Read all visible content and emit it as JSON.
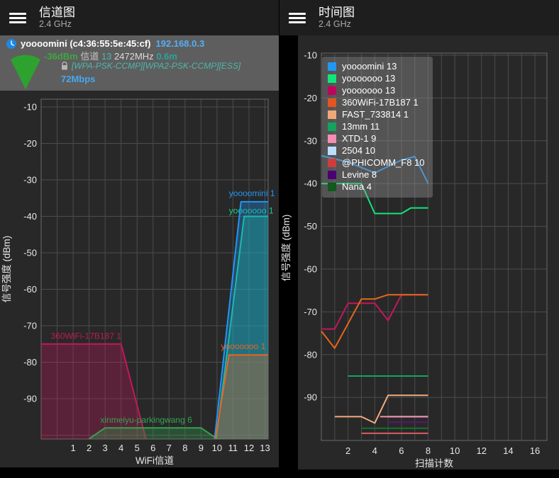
{
  "app": {
    "accent_color": "#2196F3",
    "background": "#000000",
    "chart_background": "#282828",
    "toolbar_background": "#1E1E1E",
    "ap_bar_background": "#5E5E5E",
    "gridline_color": "#4C4C4C"
  },
  "left_panel": {
    "toolbar": {
      "title": "信道图",
      "subtitle": "2.4 GHz"
    },
    "ap_info": {
      "name_and_bssid": "yoooomini (c4:36:55:5e:45:cf)",
      "ip_address": "192.168.0.3",
      "signal": "-36dBm",
      "channel_label": "信道",
      "channel": "13",
      "frequency": "2472MHz",
      "distance": "0.6m",
      "capabilities": "[WPA-PSK-CCMP][WPA2-PSK-CCMP][ESS]",
      "link_speed": "72Mbps",
      "colors": {
        "ip": "#55AEF5",
        "signal": "#3FA63F",
        "channel": "#4DB6AC",
        "frequency": "#DADADA",
        "distance": "#26A69A",
        "capabilities": "#4DB6AC",
        "link_speed": "#47A7F0",
        "wifi_icon": "#2EA22E"
      }
    }
  },
  "right_panel": {
    "toolbar": {
      "title": "时间图",
      "subtitle": "2.4 GHz"
    }
  },
  "chart_data": [
    {
      "type": "area",
      "panel": "left",
      "title": "信道图 2.4 GHz",
      "xlabel": "WiFi信道",
      "ylabel": "信号强度 (dBm)",
      "xlim": [
        -1,
        13.2
      ],
      "ylim": [
        -101,
        -10
      ],
      "xticks": [
        1,
        2,
        3,
        4,
        5,
        6,
        7,
        8,
        9,
        10,
        11,
        12,
        13
      ],
      "yticks": [
        -10,
        -20,
        -30,
        -40,
        -50,
        -60,
        -70,
        -80,
        -90
      ],
      "grid": true,
      "series": [
        {
          "name": "360WiFi-17B187 1",
          "label": "360WiFi-17B187 1",
          "color": "#C2185B",
          "points": [
            [
              -1,
              -75
            ],
            [
              4,
              -75
            ],
            [
              5.55,
              -101
            ]
          ],
          "label_pos": [
            -0.4,
            -73.6
          ]
        },
        {
          "name": "xinmeiyu-parkingwang 6",
          "label": "xinmeiyu-parkingwang 6",
          "color": "#33A352",
          "points": [
            [
              2,
              -101
            ],
            [
              3,
              -98
            ],
            [
              9,
              -98
            ],
            [
              10,
              -101
            ]
          ],
          "label_pos": [
            2.7,
            -96.6
          ]
        },
        {
          "name": "yooooooo 13",
          "label": "yooooooo 1",
          "color": "#14CE8A",
          "points": [
            [
              9.95,
              -101
            ],
            [
              11.7,
              -40
            ],
            [
              13.2,
              -40
            ]
          ],
          "label_pos": [
            10.75,
            -39.2
          ]
        },
        {
          "name": "yoooomini 13",
          "label": "yoooomini 1",
          "color": "#2196F3",
          "points": [
            [
              9.85,
              -101
            ],
            [
              11.5,
              -36
            ],
            [
              13.2,
              -36
            ]
          ],
          "label_pos": [
            10.75,
            -34.5
          ]
        },
        {
          "name": "yooooooo 13",
          "label": "yooooooo 1",
          "color": "#E8651E",
          "points": [
            [
              9.9,
              -101
            ],
            [
              10.75,
              -78
            ],
            [
              13.2,
              -78
            ]
          ],
          "label_pos": [
            10.25,
            -76.4
          ]
        }
      ]
    },
    {
      "type": "line",
      "panel": "right",
      "title": "时间图 2.4 GHz",
      "xlabel": "扫描计数",
      "ylabel": "信号强度 (dBm)",
      "xlim": [
        0,
        16.9
      ],
      "ylim": [
        -100,
        -10
      ],
      "xticks": [
        2,
        4,
        6,
        8,
        10,
        12,
        14,
        16
      ],
      "yticks": [
        -10,
        -20,
        -30,
        -40,
        -50,
        -60,
        -70,
        -80,
        -90
      ],
      "grid": true,
      "legend_position": "top-left",
      "legend": [
        {
          "label": "yoooomini 13",
          "color": "#2196F3"
        },
        {
          "label": "yooooooo 13",
          "color": "#10E57A"
        },
        {
          "label": "yooooooo 13",
          "color": "#C2005F"
        },
        {
          "label": "360WiFi-17B187 1",
          "color": "#E5551E"
        },
        {
          "label": "FAST_733814 1",
          "color": "#F0A878"
        },
        {
          "label": "13mm 11",
          "color": "#12A45C"
        },
        {
          "label": "XTD-1 9",
          "color": "#F48FB1"
        },
        {
          "label": "2504 10",
          "color": "#BBDEFB"
        },
        {
          "label": "@PHICOMM_F8 10",
          "color": "#D23B3B"
        },
        {
          "label": "Levine 8",
          "color": "#4A0072"
        },
        {
          "label": "Nana 4",
          "color": "#0F5A1D"
        }
      ],
      "series": [
        {
          "name": "2504 10",
          "color": "#BBDEFB",
          "points": [
            [
              5,
              -94.5
            ],
            [
              8,
              -94.5
            ]
          ]
        },
        {
          "name": "XTD-1 9",
          "color": "#F48FB1",
          "points": [
            [
              4.4,
              -94.5
            ],
            [
              8,
              -94.5
            ]
          ]
        },
        {
          "name": "@PHICOMM_F8 10",
          "color": "#D85A66",
          "points": [
            [
              3,
              -98.4
            ],
            [
              8,
              -98.4
            ]
          ]
        },
        {
          "name": "Nana 4",
          "color": "#1B6E2E",
          "points": [
            [
              3,
              -97.2
            ],
            [
              8,
              -97.2
            ]
          ]
        },
        {
          "name": "Levine 8",
          "color": "#5A1578",
          "points": [
            [
              5,
              -95.8
            ],
            [
              8,
              -95.8
            ]
          ]
        },
        {
          "name": "13mm 11",
          "color": "#16A45E",
          "points": [
            [
              2,
              -85
            ],
            [
              8,
              -85
            ]
          ]
        },
        {
          "name": "FAST_733814 1",
          "color": "#F2AB7E",
          "points": [
            [
              1,
              -94.5
            ],
            [
              3,
              -94.5
            ],
            [
              4,
              -96
            ],
            [
              5,
              -89.5
            ],
            [
              8,
              -89.5
            ]
          ]
        },
        {
          "name": "yooooooo 13",
          "color": "#C2185B",
          "points": [
            [
              0,
              -74
            ],
            [
              1,
              -74
            ],
            [
              2,
              -68
            ],
            [
              4,
              -68
            ],
            [
              5,
              -72
            ],
            [
              6,
              -66
            ],
            [
              8,
              -66
            ]
          ]
        },
        {
          "name": "360WiFi-17B187 1",
          "color": "#E8651E",
          "points": [
            [
              0,
              -74.5
            ],
            [
              1,
              -78.5
            ],
            [
              3,
              -67
            ],
            [
              4,
              -67
            ],
            [
              5,
              -66
            ],
            [
              8,
              -66
            ]
          ]
        },
        {
          "name": "yooooooo 13",
          "color": "#10E57A",
          "points": [
            [
              0,
              -40
            ],
            [
              3,
              -40
            ],
            [
              4,
              -47
            ],
            [
              6,
              -47
            ],
            [
              6.7,
              -45.7
            ],
            [
              8,
              -45.7
            ]
          ]
        },
        {
          "name": "yoooomini 13",
          "color": "#2196F3",
          "points": [
            [
              0,
              -33.5
            ],
            [
              2,
              -35
            ],
            [
              4,
              -37.5
            ],
            [
              6,
              -34.5
            ],
            [
              7,
              -33.7
            ],
            [
              8,
              -40
            ]
          ]
        }
      ]
    }
  ]
}
